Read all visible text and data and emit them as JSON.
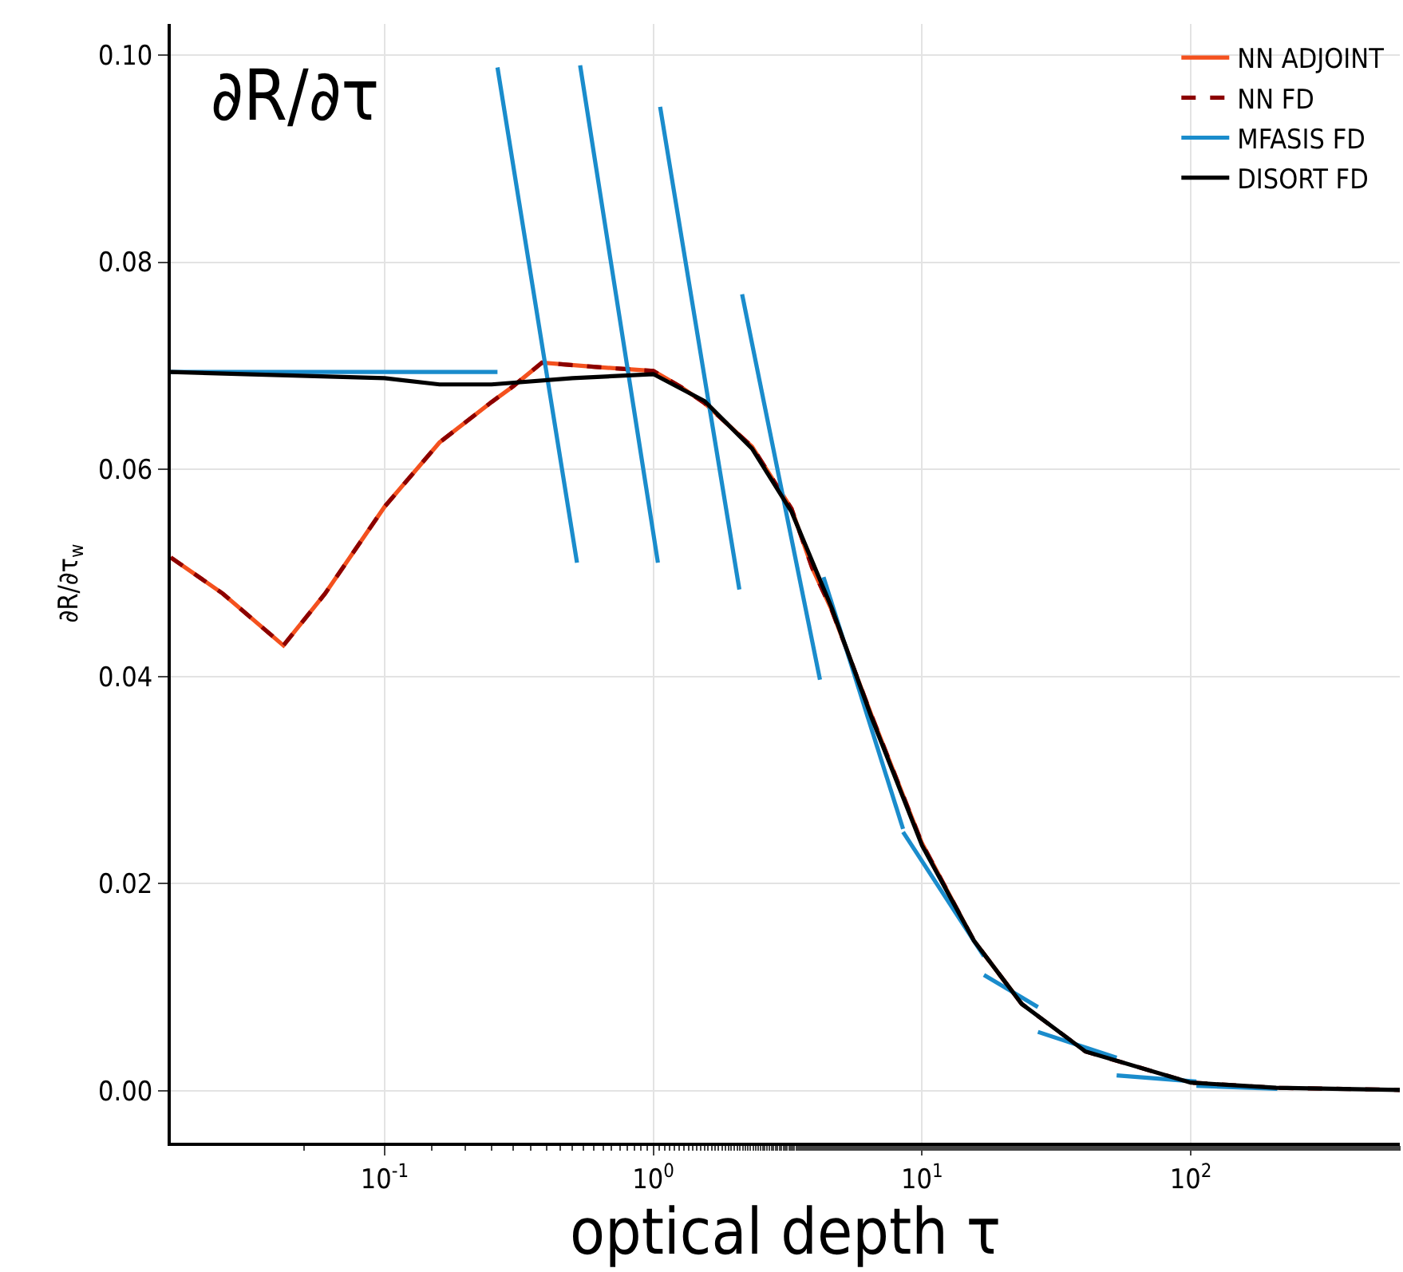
{
  "chart_data": {
    "type": "line",
    "xlabel": "optical depth τ",
    "ylabel": "∂R/∂τ$_{w}$",
    "annotations": [
      "∂R/∂τ"
    ],
    "log": "x",
    "grid": true,
    "legend": "top right",
    "marker": "none",
    "xlim": [
      0.016,
      600
    ],
    "xticks": [
      {
        "value": 0.1,
        "label": "10$^{-1}$"
      },
      {
        "value": 1,
        "label": "10$^{0}$"
      },
      {
        "value": 10,
        "label": "10$^{1}$"
      },
      {
        "value": 100,
        "label": "10$^{2}$"
      }
    ],
    "ylim": [
      -0.005,
      0.103
    ],
    "yticks": [
      {
        "value": 0,
        "label": "0.00"
      },
      {
        "value": 0.02,
        "label": "0.02"
      },
      {
        "value": 0.04,
        "label": "0.04"
      },
      {
        "value": 0.06,
        "label": "0.06"
      },
      {
        "value": 0.08,
        "label": "0.08"
      },
      {
        "value": 0.1,
        "label": "0.10"
      }
    ],
    "series": [
      {
        "name": "NN ADJOINT",
        "color": "#f4511e",
        "line_style": "solid",
        "x": [
          0.016,
          0.025,
          0.042,
          0.06,
          0.1,
          0.16,
          0.25,
          0.3,
          0.385,
          0.6,
          1,
          1.26,
          1.55,
          2.33,
          3.27,
          3.9,
          4.6,
          6.5,
          10,
          15.6,
          23.5
        ],
        "values": [
          0.0515,
          0.048,
          0.043,
          0.048,
          0.0564,
          0.0626,
          0.0665,
          0.068,
          0.0703,
          0.0699,
          0.0695,
          0.068,
          0.0664,
          0.0622,
          0.0562,
          0.0505,
          0.0465,
          0.0362,
          0.0239,
          0.0145,
          0.0084
        ]
      },
      {
        "name": "NN FD",
        "color": "#8b0000",
        "line_style": "dashed",
        "x": [
          0.016,
          0.025,
          0.042,
          0.06,
          0.1,
          0.16,
          0.25,
          0.3,
          0.385,
          0.6,
          1,
          1.26,
          1.55,
          2.33,
          3.27,
          3.9,
          4.6,
          6.5,
          10,
          15.6,
          23.5,
          40.6,
          100,
          208,
          600
        ],
        "values": [
          0.0515,
          0.048,
          0.043,
          0.048,
          0.0564,
          0.0626,
          0.0665,
          0.068,
          0.0703,
          0.0699,
          0.0695,
          0.068,
          0.0664,
          0.0622,
          0.0562,
          0.0505,
          0.0465,
          0.0362,
          0.0239,
          0.0145,
          0.0084,
          0.0038,
          0.0008,
          0.0003,
          0.0001
        ]
      },
      {
        "name": "MFASIS FD",
        "color": "#1a8ccc",
        "line_style": "solid",
        "x": [
          0.016,
          0.263,
          null,
          0.263,
          0.52,
          null,
          0.534,
          1.04,
          null,
          1.06,
          2.09,
          null,
          2.14,
          4.17,
          null,
          4.3,
          8.5,
          null,
          8.5,
          17,
          null,
          17,
          27,
          null,
          27,
          53,
          null,
          53,
          105,
          null,
          105,
          210
        ],
        "values": [
          0.0694,
          0.0694,
          null,
          0.0988,
          0.051,
          null,
          0.099,
          0.051,
          null,
          0.095,
          0.0484,
          null,
          0.0769,
          0.0397,
          null,
          0.0496,
          0.0253,
          null,
          0.025,
          0.013,
          null,
          0.0112,
          0.0081,
          null,
          0.0057,
          0.0032,
          null,
          0.0015,
          0.0009,
          null,
          0.0005,
          0.0002
        ]
      },
      {
        "name": "DISORT FD",
        "color": "#000000",
        "line_style": "solid",
        "x": [
          0.016,
          0.1,
          0.16,
          0.25,
          0.5,
          1,
          1.55,
          2.33,
          3.27,
          4.6,
          6.5,
          10,
          15.6,
          23.5,
          40.6,
          100,
          208,
          600
        ],
        "values": [
          0.0694,
          0.0688,
          0.0682,
          0.0682,
          0.0688,
          0.0692,
          0.0666,
          0.062,
          0.0559,
          0.0467,
          0.036,
          0.0237,
          0.0145,
          0.0084,
          0.0038,
          0.0008,
          0.0003,
          0.0001
        ]
      }
    ]
  }
}
